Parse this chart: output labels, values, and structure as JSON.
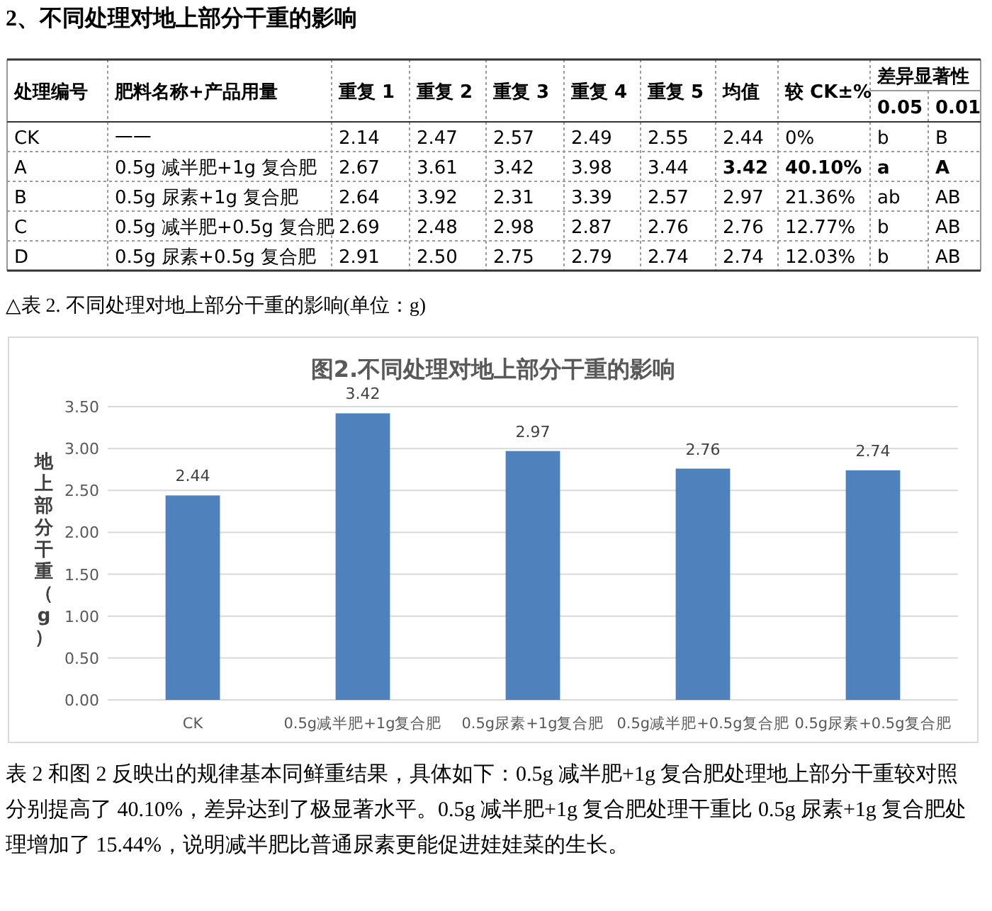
{
  "chart_data": [
    {
      "type": "other",
      "title": "2、不同处理对地上部分干重的影响",
      "annotations": [
        "处理编号",
        "肥料名称+产品用量",
        "重复 1",
        "重复 2",
        "重复 3",
        "重复 4",
        "重复 5",
        "均值",
        "较 CK±%",
        "差异显著性",
        "0.05",
        "0.01",
        "CK",
        "一一",
        "2.14",
        "2.47",
        "2.57",
        "2.49",
        "2.55",
        "2.44",
        "0%",
        "b",
        "B",
        "A",
        "0.5g 减半肥+1g 复合肥",
        "2.67",
        "3.61",
        "3.42",
        "3.98",
        "3.44",
        "3.42",
        "40.10%",
        "a",
        "A",
        "B",
        "0.5g 尿素+1g 复合肥",
        "2.64",
        "3.92",
        "2.31",
        "3.39",
        "2.57",
        "2.97",
        "21.36%",
        "ab",
        "AB",
        "C",
        "0.5g 减半肥+0.5g 复合肥",
        "2.69",
        "2.48",
        "2.98",
        "2.87",
        "2.76",
        "2.76",
        "12.77%",
        "b",
        "AB",
        "D",
        "0.5g 尿素+0.5g 复合肥",
        "2.91",
        "2.50",
        "2.75",
        "2.79",
        "2.74",
        "2.74",
        "12.03%",
        "b",
        "AB",
        "△表 2. 不同处理对地上部分干重的影响(单位：g)"
      ]
    },
    {
      "type": "bar",
      "title": "图2.不同处理对地上部分干重的影响",
      "ylabel": "地上部分干重（g）",
      "categories": [
        "CK",
        "0.5g减半肥+1g复合肥",
        "0.5g尿素+1g复合肥",
        "0.5g减半肥+0.5g复合肥",
        "0.5g尿素+0.5g复合肥"
      ],
      "values": [
        2.44,
        3.42,
        2.97,
        2.76,
        2.74
      ],
      "color": "#4f81bd",
      "ylim": [
        0,
        3.5
      ],
      "yticks": [
        "0.00",
        "0.50",
        "1.00",
        "1.50",
        "2.00",
        "2.50",
        "3.00",
        "3.50"
      ],
      "grid": "y",
      "data_labels": true
    },
    {
      "type": "other",
      "annotations": [
        "表 2 和图 2 反映出的规律基本同鲜重结果，具体如下：0.5g 减半肥+1g 复合肥处理地上部分干重较对照分别提高了 40.10%，差异达到了极显著水平。0.5g 减半肥+1g 复合肥处理干重比 0.5g 尿素+1g 复合肥处理增加了 15.44%，说明减半肥比普通尿素更能促进娃娃菜的生长。"
      ]
    }
  ]
}
